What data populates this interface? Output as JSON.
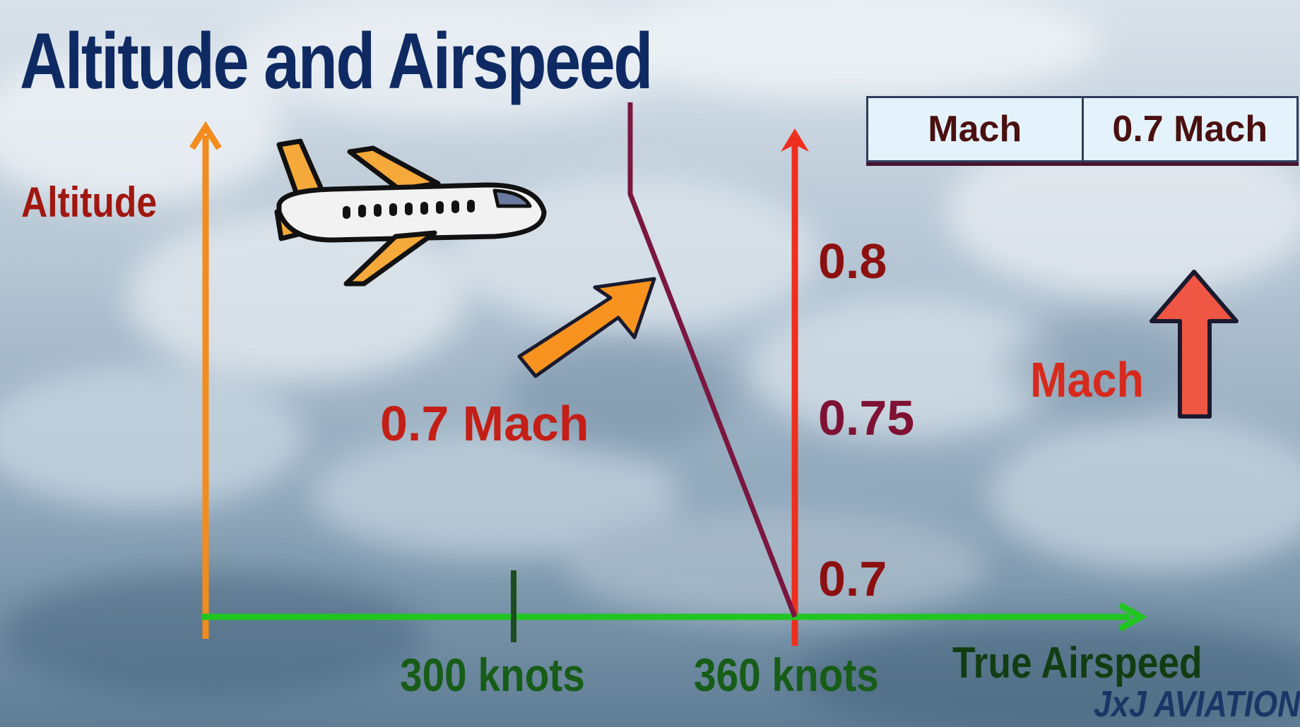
{
  "title": "Altitude and Airspeed",
  "y_axis_label": "Altitude",
  "x_axis_label": "True Airspeed",
  "mach_label": "0.7 Mach",
  "mach_ticks": [
    "0.8",
    "0.75",
    "0.7"
  ],
  "speed_ticks": [
    "300 knots",
    "360 knots"
  ],
  "table": {
    "left": "Mach",
    "right": "0.7 Mach"
  },
  "mach_indicator": "Mach",
  "watermark": "JxJ AVIATION",
  "colors": {
    "title": "#0f2a63",
    "altitude_axis": "#f28c1e",
    "mach_axis": "#ee2f1f",
    "airspeed_axis": "#22c422",
    "mach_line": "#7a1740",
    "label_red": "#c41f17",
    "label_maroon": "#7f1234",
    "label_green": "#175c17",
    "tick_dark_red": "#8c1010"
  },
  "icons": [
    "airplane-icon",
    "orange-arrow-icon",
    "red-up-arrow-icon"
  ]
}
